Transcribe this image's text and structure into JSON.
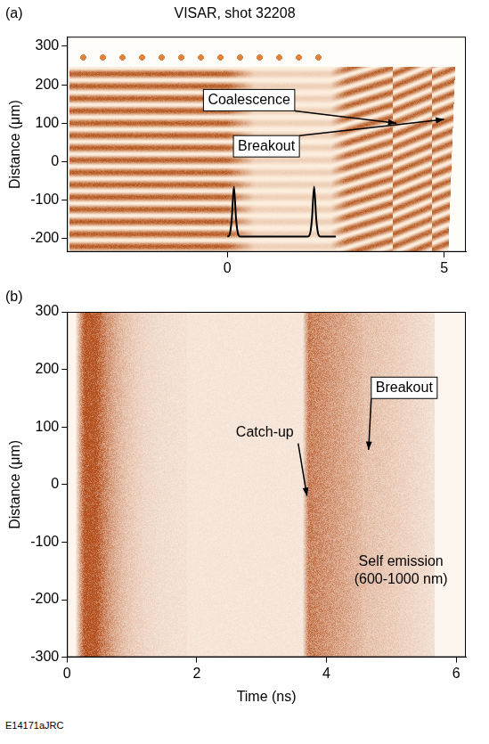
{
  "chart_data": [
    {
      "type": "line",
      "panel": "(a)",
      "title": "VISAR, shot 32208",
      "y_label": "Distance (μm)",
      "xlim": [
        -3.7,
        5.5
      ],
      "xticks": [
        0,
        5
      ],
      "ylim": [
        -235,
        325
      ],
      "yticks": [
        -200,
        -100,
        0,
        100,
        200,
        300
      ],
      "grid": false,
      "series": [
        {
          "color": "#000000",
          "x": [
            0.0,
            0.05,
            0.1,
            0.15,
            0.2,
            0.25,
            0.3,
            0.5,
            1.0,
            1.5,
            1.85,
            1.9,
            1.95,
            2.0,
            2.05,
            2.1,
            2.15,
            2.3,
            2.5
          ],
          "values": [
            -195,
            -190,
            -150,
            -65,
            -150,
            -190,
            -195,
            -195,
            -195,
            -195,
            -195,
            -190,
            -150,
            -65,
            -150,
            -190,
            -195,
            -195,
            -195
          ]
        }
      ],
      "annotations": [
        "Coalescence",
        "Breakout"
      ]
    },
    {
      "type": "image",
      "panel": "(b)",
      "x_label": "Time (ns)",
      "y_label": "Distance (μm)",
      "xlim": [
        0,
        6.15
      ],
      "xticks": [
        0,
        2,
        4,
        6
      ],
      "ylim": [
        -300,
        300
      ],
      "yticks": [
        -300,
        -200,
        -100,
        0,
        100,
        200,
        300
      ],
      "grid": false,
      "annotations": [
        "Catch-up",
        "Breakout",
        "Self emission (600-1000 nm)"
      ]
    }
  ],
  "footnote": "E14171aJRC"
}
